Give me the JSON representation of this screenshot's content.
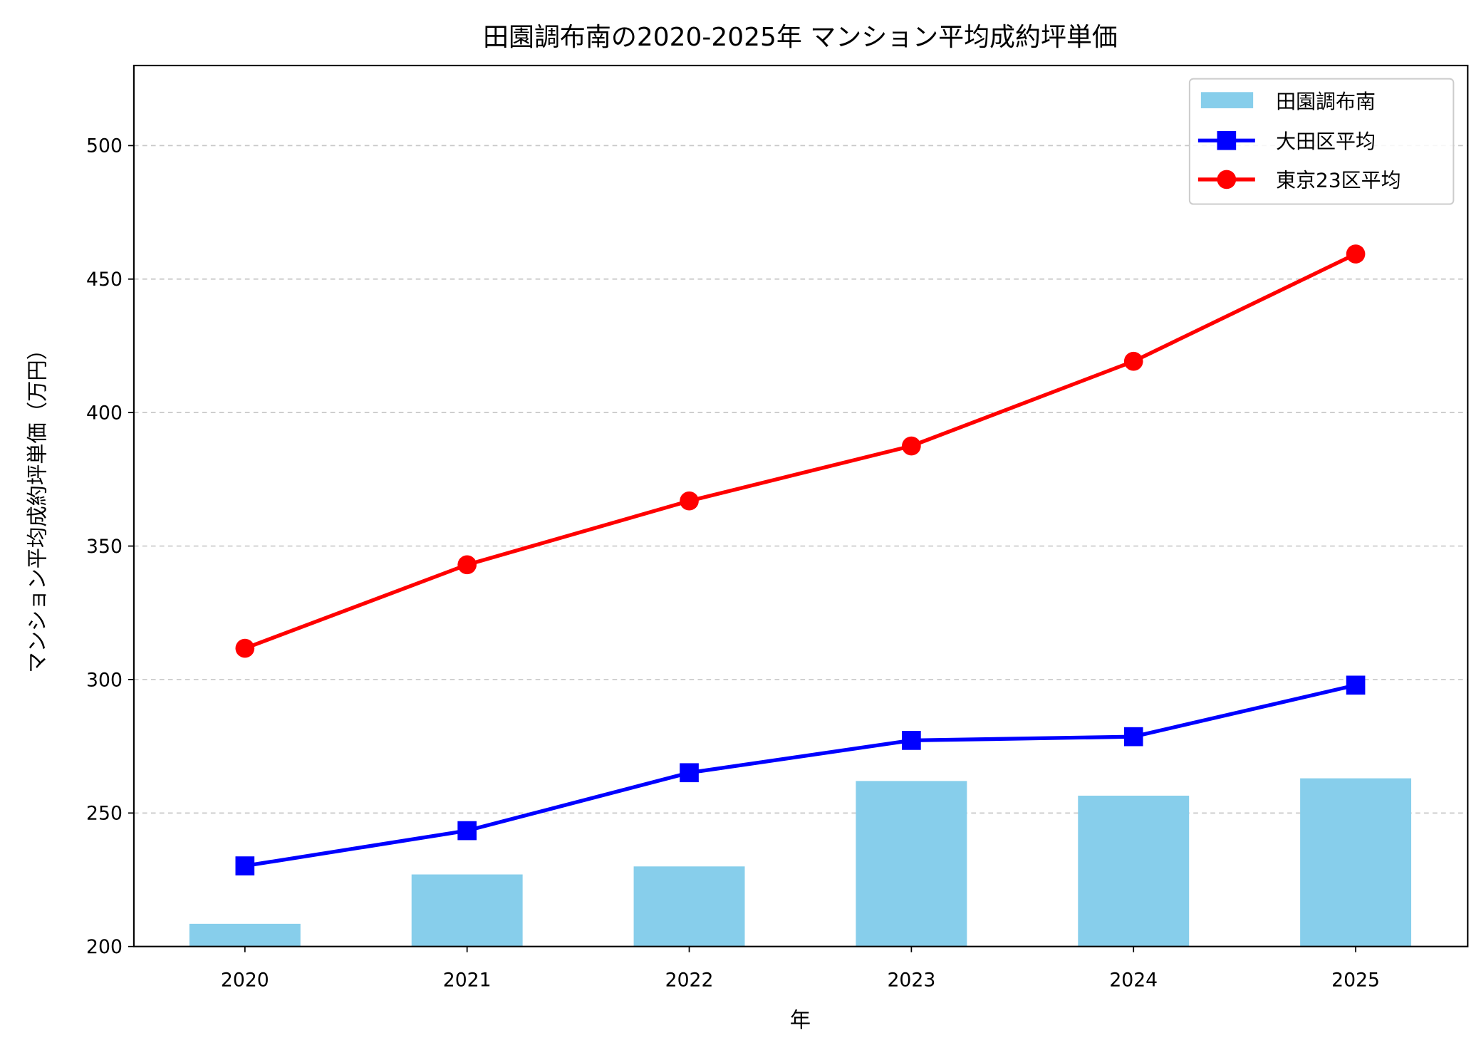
{
  "chart_data": {
    "type": "bar+line",
    "title": "田園調布南の2020-2025年 マンション平均成約坪単価",
    "xlabel": "年",
    "ylabel": "マンション平均成約坪単価（万円）",
    "categories": [
      "2020",
      "2021",
      "2022",
      "2023",
      "2024",
      "2025"
    ],
    "ylim": [
      200,
      530
    ],
    "yticks": [
      200,
      250,
      300,
      350,
      400,
      450,
      500
    ],
    "grid": "horizontal dashed",
    "legend_position": "top-right",
    "series": [
      {
        "name": "田園調布南",
        "kind": "bar",
        "color": "#87CEEB",
        "values": [
          208.5,
          227,
          230,
          262,
          256.5,
          263
        ]
      },
      {
        "name": "大田区平均",
        "kind": "line",
        "marker": "square",
        "color": "#0000FF",
        "values": [
          230.2,
          243.4,
          265.1,
          277.2,
          278.6,
          297.9
        ]
      },
      {
        "name": "東京23区平均",
        "kind": "line",
        "marker": "circle",
        "color": "#FF0000",
        "values": [
          311.7,
          343,
          366.9,
          387.5,
          419.2,
          459.4
        ]
      }
    ]
  }
}
